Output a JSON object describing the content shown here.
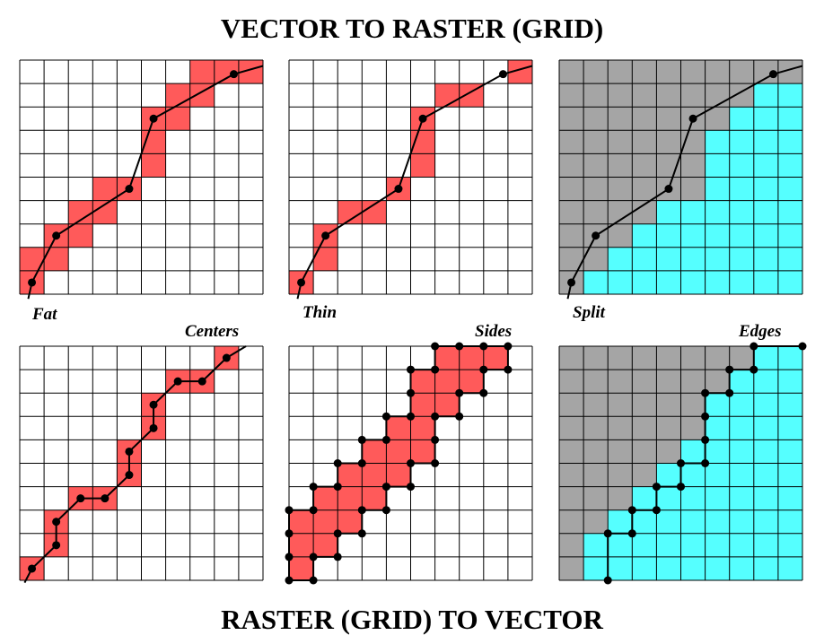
{
  "title_top": "VECTOR TO RASTER (GRID)",
  "title_bottom": "RASTER (GRID) TO VECTOR",
  "colors": {
    "filled_cell": "#FF5A5A",
    "region_above": "#A5A5A5",
    "region_below": "#55FFFF",
    "grid_line": "#000000",
    "vector_line": "#000000"
  },
  "grid": {
    "cols": 10,
    "rows": 10
  },
  "vector_polyline": [
    [
      0.5,
      0.5
    ],
    [
      1.5,
      2.5
    ],
    [
      4.5,
      4.5
    ],
    [
      5.5,
      7.5
    ],
    [
      8.8,
      9.4
    ]
  ],
  "panels": [
    {
      "id": "fat",
      "label": "Fat",
      "method": "vector-to-raster",
      "cells": [
        [
          0,
          0
        ],
        [
          0,
          1
        ],
        [
          1,
          1
        ],
        [
          1,
          2
        ],
        [
          2,
          2
        ],
        [
          2,
          3
        ],
        [
          3,
          3
        ],
        [
          3,
          4
        ],
        [
          4,
          4
        ],
        [
          5,
          5
        ],
        [
          5,
          6
        ],
        [
          5,
          7
        ],
        [
          6,
          7
        ],
        [
          6,
          8
        ],
        [
          7,
          8
        ],
        [
          7,
          9
        ],
        [
          8,
          9
        ],
        [
          9,
          9
        ]
      ]
    },
    {
      "id": "thin",
      "label": "Thin",
      "method": "vector-to-raster",
      "cells": [
        [
          0,
          0
        ],
        [
          1,
          1
        ],
        [
          1,
          2
        ],
        [
          2,
          3
        ],
        [
          3,
          3
        ],
        [
          4,
          4
        ],
        [
          5,
          5
        ],
        [
          5,
          6
        ],
        [
          5,
          7
        ],
        [
          6,
          8
        ],
        [
          7,
          8
        ],
        [
          9,
          9
        ]
      ]
    },
    {
      "id": "split",
      "label": "Split",
      "method": "vector-to-raster",
      "staircase_heights": [
        0,
        1,
        2,
        3,
        4,
        4,
        7,
        8,
        9,
        9
      ]
    },
    {
      "id": "centers",
      "label": "Centers",
      "method": "raster-to-vector",
      "cells": [
        [
          0,
          0
        ],
        [
          1,
          1
        ],
        [
          1,
          2
        ],
        [
          2,
          3
        ],
        [
          3,
          3
        ],
        [
          4,
          4
        ],
        [
          4,
          5
        ],
        [
          5,
          6
        ],
        [
          5,
          7
        ],
        [
          6,
          8
        ],
        [
          7,
          8
        ],
        [
          8,
          9
        ]
      ],
      "path": [
        [
          0.5,
          0.5
        ],
        [
          1.5,
          1.5
        ],
        [
          1.5,
          2.5
        ],
        [
          2.5,
          3.5
        ],
        [
          3.5,
          3.5
        ],
        [
          4.5,
          4.5
        ],
        [
          4.5,
          5.5
        ],
        [
          5.5,
          6.5
        ],
        [
          5.5,
          7.5
        ],
        [
          6.5,
          8.5
        ],
        [
          7.5,
          8.5
        ],
        [
          8.5,
          9.5
        ],
        [
          9.3,
          10.0
        ]
      ]
    },
    {
      "id": "sides",
      "label": "Sides",
      "method": "raster-to-vector",
      "cells": [
        [
          0,
          0
        ],
        [
          0,
          1
        ],
        [
          0,
          2
        ],
        [
          1,
          1
        ],
        [
          1,
          2
        ],
        [
          1,
          3
        ],
        [
          2,
          2
        ],
        [
          2,
          3
        ],
        [
          2,
          4
        ],
        [
          3,
          3
        ],
        [
          3,
          4
        ],
        [
          3,
          5
        ],
        [
          4,
          4
        ],
        [
          4,
          5
        ],
        [
          4,
          6
        ],
        [
          5,
          5
        ],
        [
          5,
          6
        ],
        [
          5,
          7
        ],
        [
          5,
          8
        ],
        [
          6,
          7
        ],
        [
          6,
          8
        ],
        [
          6,
          9
        ],
        [
          7,
          8
        ],
        [
          7,
          9
        ],
        [
          8,
          9
        ]
      ]
    },
    {
      "id": "edges",
      "label": "Edges",
      "method": "raster-to-vector",
      "staircase_heights": [
        0,
        2,
        3,
        4,
        5,
        6,
        8,
        9,
        10,
        10
      ],
      "path": [
        [
          2,
          0
        ],
        [
          2,
          2
        ],
        [
          3,
          2
        ],
        [
          3,
          3
        ],
        [
          4,
          3
        ],
        [
          4,
          4
        ],
        [
          5,
          4
        ],
        [
          5,
          5
        ],
        [
          6,
          5
        ],
        [
          6,
          6
        ],
        [
          6,
          7
        ],
        [
          6,
          8
        ],
        [
          7,
          8
        ],
        [
          7,
          9
        ],
        [
          8,
          9
        ],
        [
          8,
          10
        ],
        [
          10,
          10
        ]
      ]
    }
  ]
}
